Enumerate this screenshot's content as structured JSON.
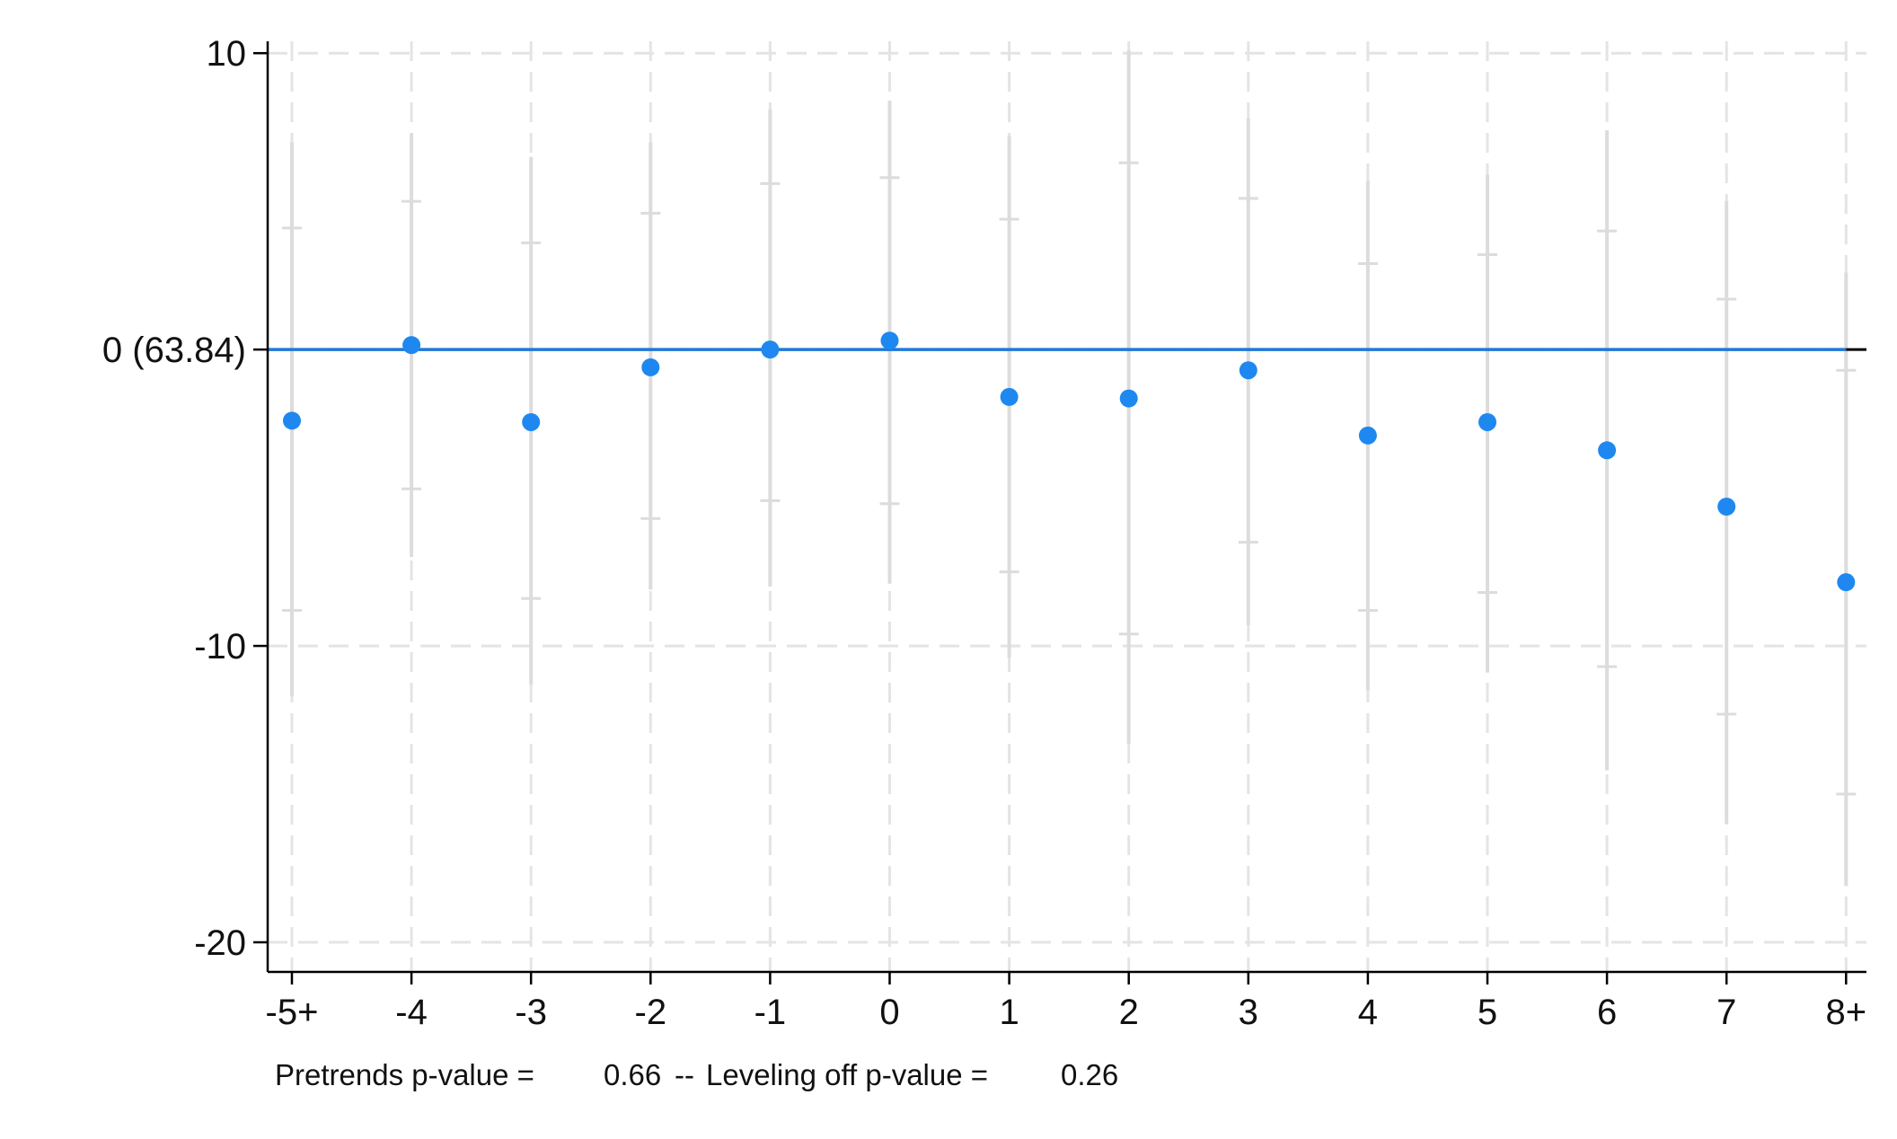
{
  "chart_data": {
    "type": "scatter",
    "title": "",
    "xlabel": "",
    "ylabel": "",
    "categories": [
      "-5+",
      "-4",
      "-3",
      "-2",
      "-1",
      "0",
      "1",
      "2",
      "3",
      "4",
      "5",
      "6",
      "7",
      "8+"
    ],
    "ylim": [
      -21,
      10.4
    ],
    "yticks": [
      {
        "value": 10,
        "label": "10"
      },
      {
        "value": 0,
        "label": "0 (63.84)"
      },
      {
        "value": -10,
        "label": "-10"
      },
      {
        "value": -20,
        "label": "-20"
      }
    ],
    "reference_line": {
      "value": 0,
      "color": "#1f78d6"
    },
    "grid": true,
    "series": [
      {
        "kind": "point_estimate",
        "color": "#1e88f0",
        "values": [
          -2.4,
          0.15,
          -2.45,
          -0.6,
          0.0,
          0.3,
          -1.6,
          -1.65,
          -0.7,
          -2.9,
          -2.45,
          -3.4,
          -5.3,
          -7.85
        ]
      },
      {
        "kind": "confidence_interval_outer",
        "color": "#dcdcdc",
        "lower": [
          -11.7,
          -7.0,
          -11.3,
          -8.1,
          -8.0,
          -7.9,
          -10.4,
          -13.3,
          -9.3,
          -11.5,
          -10.9,
          -14.2,
          -16.0,
          -18.1
        ],
        "upper": [
          7.0,
          7.3,
          6.5,
          7.0,
          8.1,
          8.4,
          7.2,
          10.1,
          7.8,
          5.7,
          5.9,
          7.4,
          5.0,
          2.6
        ]
      },
      {
        "kind": "confidence_interval_inner",
        "color": "#dcdcdc",
        "lower": [
          -8.8,
          -4.7,
          -8.4,
          -5.7,
          -5.1,
          -5.2,
          -7.5,
          -9.6,
          -6.5,
          -8.8,
          -8.2,
          -10.7,
          -12.3,
          -15.0
        ],
        "upper": [
          4.1,
          5.0,
          3.6,
          4.6,
          5.6,
          5.8,
          4.4,
          6.3,
          5.1,
          2.9,
          3.2,
          4.0,
          1.7,
          -0.7
        ]
      }
    ]
  },
  "note": {
    "pretrends_label": "Pretrends p-value =",
    "pretrends_value": "0.66",
    "separator": "--",
    "leveling_label": "Leveling off p-value =",
    "leveling_value": "0.26"
  },
  "colors": {
    "axis": "#000000",
    "grid": "#e4e4e4",
    "ci": "#dcdcdc",
    "point": "#1e88f0",
    "reference_line": "#1f78d6"
  }
}
